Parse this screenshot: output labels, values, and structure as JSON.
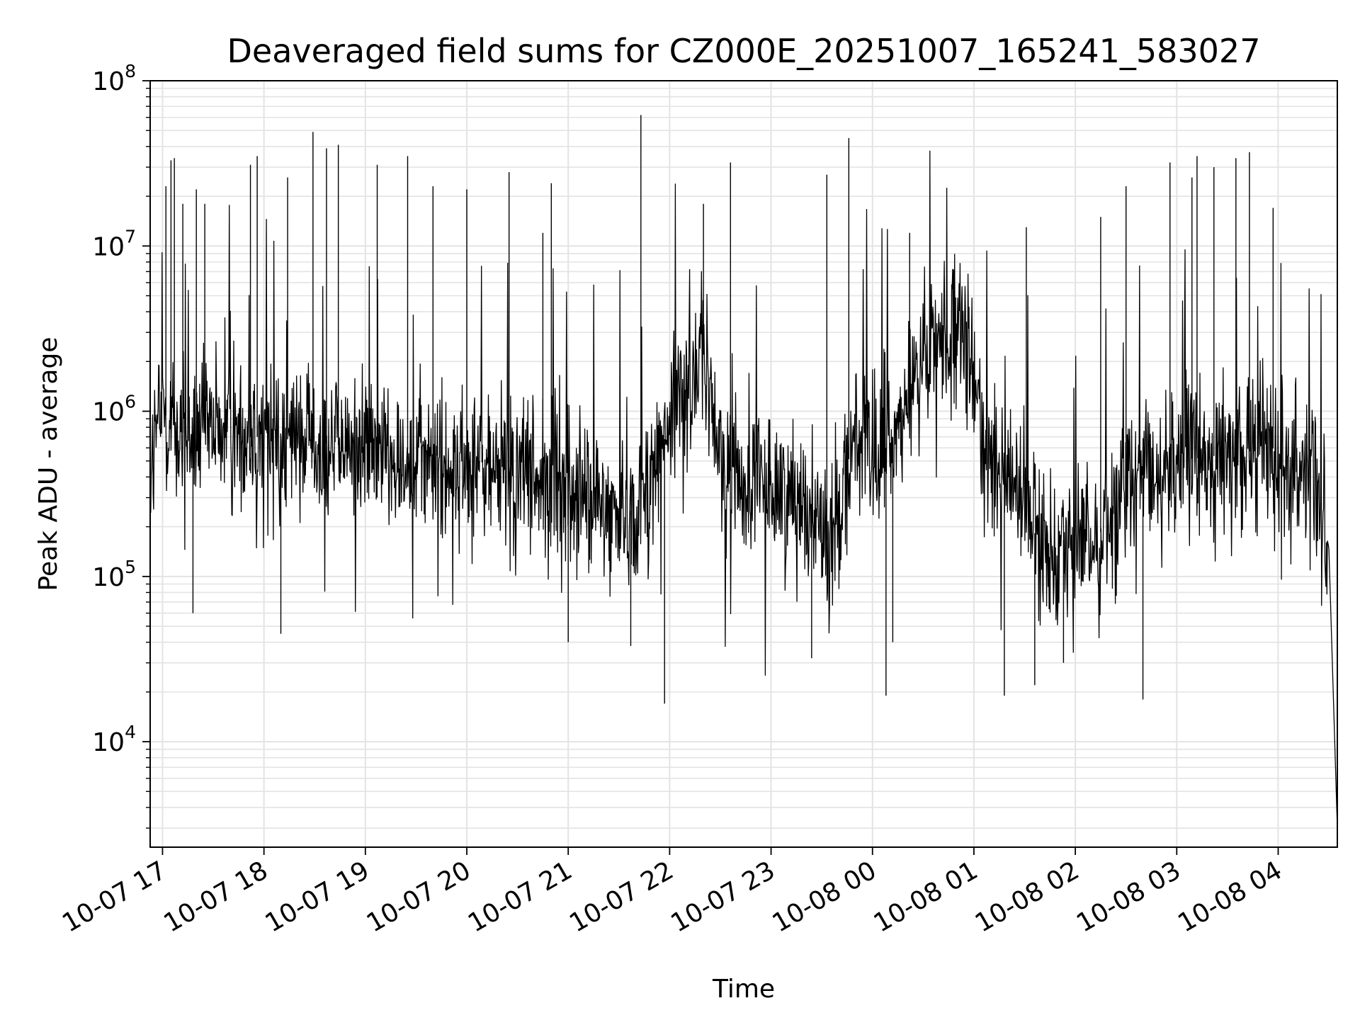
{
  "chart_data": {
    "type": "line",
    "title": "Deaveraged field sums for CZ000E_20251007_165241_583027",
    "xlabel": "Time",
    "ylabel": "Peak ADU - average",
    "yscale": "log",
    "ylim": [
      2300,
      100000000
    ],
    "xlim": [
      "2025-10-07 16:52:41",
      "2025-10-08 04:35:00"
    ],
    "grid": true,
    "colors": {
      "line": "#000000",
      "grid": "#e3e3e3",
      "axis": "#000000"
    },
    "x_ticks": [
      {
        "time": "2025-10-07 17:00",
        "label": "10-07 17"
      },
      {
        "time": "2025-10-07 18:00",
        "label": "10-07 18"
      },
      {
        "time": "2025-10-07 19:00",
        "label": "10-07 19"
      },
      {
        "time": "2025-10-07 20:00",
        "label": "10-07 20"
      },
      {
        "time": "2025-10-07 21:00",
        "label": "10-07 21"
      },
      {
        "time": "2025-10-07 22:00",
        "label": "10-07 22"
      },
      {
        "time": "2025-10-07 23:00",
        "label": "10-07 23"
      },
      {
        "time": "2025-10-08 00:00",
        "label": "10-08 00"
      },
      {
        "time": "2025-10-08 01:00",
        "label": "10-08 01"
      },
      {
        "time": "2025-10-08 02:00",
        "label": "10-08 02"
      },
      {
        "time": "2025-10-08 03:00",
        "label": "10-08 03"
      },
      {
        "time": "2025-10-08 04:00",
        "label": "10-08 04"
      }
    ],
    "y_ticks": [
      {
        "value": 10000,
        "base": "10",
        "exp": "4"
      },
      {
        "value": 100000,
        "base": "10",
        "exp": "5"
      },
      {
        "value": 1000000,
        "base": "10",
        "exp": "6"
      },
      {
        "value": 10000000,
        "base": "10",
        "exp": "7"
      },
      {
        "value": 100000000,
        "base": "10",
        "exp": "8"
      }
    ],
    "series": [
      {
        "x": [
          "2025-10-07 16:53",
          "2025-10-07 17:00",
          "2025-10-07 17:08",
          "2025-10-07 17:15",
          "2025-10-07 17:30",
          "2025-10-07 17:45",
          "2025-10-07 18:00",
          "2025-10-07 18:30",
          "2025-10-07 19:00",
          "2025-10-07 19:30",
          "2025-10-07 20:00",
          "2025-10-07 20:30",
          "2025-10-07 21:00",
          "2025-10-07 21:20",
          "2025-10-07 21:40",
          "2025-10-07 21:55",
          "2025-10-07 22:10",
          "2025-10-07 22:20",
          "2025-10-07 22:30",
          "2025-10-07 22:45",
          "2025-10-07 23:00",
          "2025-10-07 23:20",
          "2025-10-07 23:35",
          "2025-10-07 23:50",
          "2025-10-08 00:00",
          "2025-10-08 00:15",
          "2025-10-08 00:30",
          "2025-10-08 00:45",
          "2025-10-08 00:55",
          "2025-10-08 01:05",
          "2025-10-08 01:20",
          "2025-10-08 01:40",
          "2025-10-08 01:55",
          "2025-10-08 02:10",
          "2025-10-08 02:30",
          "2025-10-08 03:00",
          "2025-10-08 03:30",
          "2025-10-08 04:00",
          "2025-10-08 04:20",
          "2025-10-08 04:30",
          "2025-10-08 04:35"
        ],
        "values": [
          500000,
          1000000,
          800000,
          700000,
          750000,
          700000,
          700000,
          650000,
          600000,
          500000,
          450000,
          400000,
          350000,
          250000,
          250000,
          600000,
          1500000,
          2200000,
          500000,
          350000,
          350000,
          300000,
          150000,
          800000,
          400000,
          800000,
          2000000,
          3000000,
          2500000,
          800000,
          400000,
          150000,
          170000,
          150000,
          350000,
          500000,
          550000,
          600000,
          450000,
          150000,
          3000
        ],
        "spikes": [
          {
            "x": "2025-10-07 17:02",
            "v": 23000000
          },
          {
            "x": "2025-10-07 17:05",
            "v": 33000000
          },
          {
            "x": "2025-10-07 17:07",
            "v": 34000000
          },
          {
            "x": "2025-10-07 17:12",
            "v": 18000000
          },
          {
            "x": "2025-10-07 17:20",
            "v": 22000000
          },
          {
            "x": "2025-10-07 17:25",
            "v": 18000000
          },
          {
            "x": "2025-10-07 17:52",
            "v": 31000000
          },
          {
            "x": "2025-10-07 17:56",
            "v": 35000000
          },
          {
            "x": "2025-10-07 18:14",
            "v": 26000000
          },
          {
            "x": "2025-10-07 18:29",
            "v": 49000000
          },
          {
            "x": "2025-10-07 18:37",
            "v": 39000000
          },
          {
            "x": "2025-10-07 18:44",
            "v": 41000000
          },
          {
            "x": "2025-10-07 19:07",
            "v": 31000000
          },
          {
            "x": "2025-10-07 19:25",
            "v": 35000000
          },
          {
            "x": "2025-10-07 19:40",
            "v": 23000000
          },
          {
            "x": "2025-10-07 20:00",
            "v": 22000000
          },
          {
            "x": "2025-10-07 20:25",
            "v": 28000000
          },
          {
            "x": "2025-10-07 20:45",
            "v": 12000000
          },
          {
            "x": "2025-10-07 20:50",
            "v": 24000000
          },
          {
            "x": "2025-10-07 21:43",
            "v": 62000000
          },
          {
            "x": "2025-10-07 22:20",
            "v": 18000000
          },
          {
            "x": "2025-10-07 22:36",
            "v": 32000000
          },
          {
            "x": "2025-10-07 23:33",
            "v": 27000000
          },
          {
            "x": "2025-10-07 23:46",
            "v": 45000000
          },
          {
            "x": "2025-10-08 00:22",
            "v": 12000000
          },
          {
            "x": "2025-10-08 01:31",
            "v": 13000000
          },
          {
            "x": "2025-10-08 02:15",
            "v": 15000000
          },
          {
            "x": "2025-10-08 02:30",
            "v": 23000000
          },
          {
            "x": "2025-10-08 02:56",
            "v": 32000000
          },
          {
            "x": "2025-10-08 03:09",
            "v": 26000000
          },
          {
            "x": "2025-10-08 03:12",
            "v": 35000000
          },
          {
            "x": "2025-10-08 03:22",
            "v": 30000000
          },
          {
            "x": "2025-10-08 03:35",
            "v": 34000000
          },
          {
            "x": "2025-10-08 03:43",
            "v": 37000000
          },
          {
            "x": "2025-10-08 03:57",
            "v": 17000000
          }
        ],
        "dips": [
          {
            "x": "2025-10-07 17:18",
            "v": 60000
          },
          {
            "x": "2025-10-07 18:10",
            "v": 45000
          },
          {
            "x": "2025-10-07 21:00",
            "v": 40000
          },
          {
            "x": "2025-10-07 21:37",
            "v": 38000
          },
          {
            "x": "2025-10-07 21:57",
            "v": 17000
          },
          {
            "x": "2025-10-07 23:24",
            "v": 32000
          },
          {
            "x": "2025-10-08 00:08",
            "v": 19000
          },
          {
            "x": "2025-10-08 00:12",
            "v": 40000
          },
          {
            "x": "2025-10-08 01:18",
            "v": 19000
          },
          {
            "x": "2025-10-08 01:36",
            "v": 22000
          },
          {
            "x": "2025-10-08 01:53",
            "v": 30000
          },
          {
            "x": "2025-10-08 02:40",
            "v": 18000
          }
        ]
      }
    ]
  }
}
